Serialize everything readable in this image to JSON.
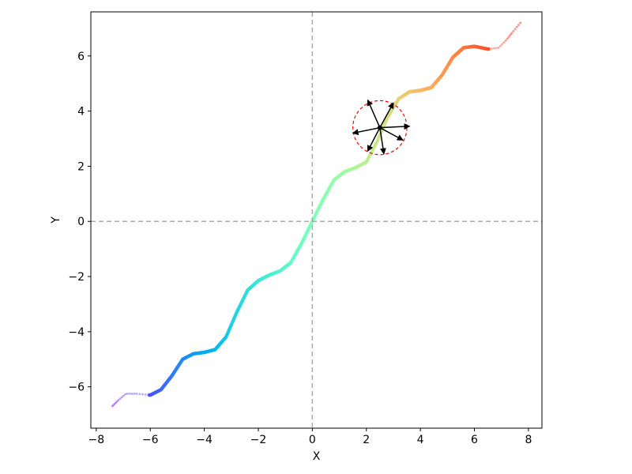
{
  "chart_data": {
    "type": "scatter",
    "title": "",
    "xlabel": "X",
    "ylabel": "Y",
    "xlim": [
      -8.2,
      8.5
    ],
    "ylim": [
      -7.5,
      7.6
    ],
    "x_ticks": [
      -8,
      -6,
      -4,
      -2,
      0,
      2,
      4,
      6,
      8
    ],
    "y_ticks": [
      -6,
      -4,
      -2,
      0,
      2,
      4,
      6
    ],
    "x_tick_labels": [
      "−8",
      "−6",
      "−4",
      "−2",
      "0",
      "2",
      "4",
      "6",
      "8"
    ],
    "y_tick_labels": [
      "−6",
      "−4",
      "−2",
      "0",
      "2",
      "4",
      "6"
    ],
    "grid": false,
    "reference_lines": {
      "x": 0,
      "y": 0,
      "style": "dashed",
      "color": "#aaaaaa"
    },
    "colormap": "rainbow",
    "curve": {
      "description_points_x": [
        -7.4,
        -7.2,
        -6.9,
        -6.5,
        -6.0,
        -5.6,
        -5.2,
        -4.8,
        -4.4,
        -4.0,
        -3.6,
        -3.2,
        -2.8,
        -2.4,
        -2.0,
        -1.6,
        -1.2,
        -0.8,
        -0.4,
        0.0,
        0.4,
        0.8,
        1.2,
        1.6,
        2.0,
        2.4,
        2.8,
        3.2,
        3.6,
        4.0,
        4.4,
        4.8,
        5.2,
        5.6,
        6.0,
        6.5,
        6.9,
        7.2,
        7.4,
        7.7
      ],
      "description_points_y": [
        -6.7,
        -6.5,
        -6.25,
        -6.25,
        -6.3,
        -6.1,
        -5.6,
        -5.0,
        -4.8,
        -4.75,
        -4.65,
        -4.2,
        -3.3,
        -2.5,
        -2.15,
        -1.95,
        -1.8,
        -1.5,
        -0.8,
        0.0,
        0.8,
        1.5,
        1.8,
        1.95,
        2.15,
        2.9,
        3.8,
        4.45,
        4.7,
        4.75,
        4.85,
        5.3,
        5.95,
        6.3,
        6.35,
        6.25,
        6.3,
        6.6,
        6.85,
        7.2
      ],
      "sparse_tail_fraction": 0.1
    },
    "highlight": {
      "center": [
        2.5,
        3.4
      ],
      "radius": 1.0,
      "circle_color": "#ff0000",
      "circle_style": "dashed",
      "center_point_color": "#000000",
      "arrows": [
        {
          "to": [
            3.6,
            3.45
          ]
        },
        {
          "to": [
            3.0,
            4.3
          ]
        },
        {
          "to": [
            2.05,
            4.4
          ]
        },
        {
          "to": [
            1.5,
            3.2
          ]
        },
        {
          "to": [
            2.05,
            2.55
          ]
        },
        {
          "to": [
            2.65,
            2.45
          ]
        },
        {
          "to": [
            3.35,
            2.95
          ]
        }
      ],
      "arrow_color": "#000000"
    }
  }
}
